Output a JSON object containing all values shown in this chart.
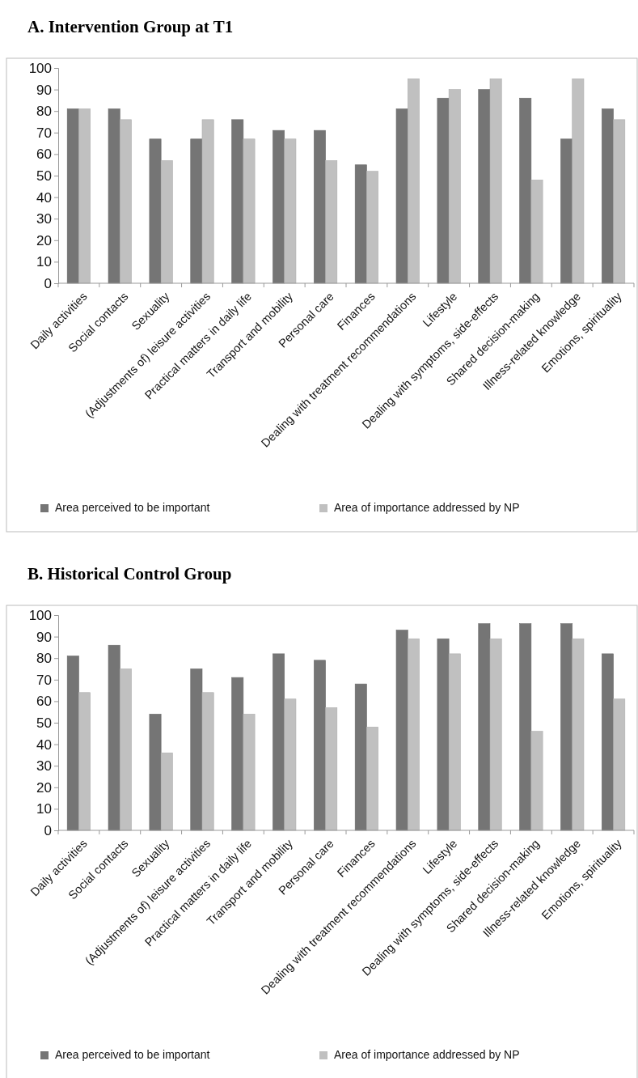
{
  "chart_data": [
    {
      "type": "bar",
      "title": "A.  Intervention Group at T1",
      "categories": [
        "Daily activities",
        "Social contacts",
        "Sexuality",
        "(Adjustments of) leisure activities",
        "Practical matters in daily life",
        "Transport and mobility",
        "Personal care",
        "Finances",
        "Dealing with treatment recommendations",
        "Lifestyle",
        "Dealing with symptoms, side-effects",
        "Shared decision-making",
        "Illness-related knowledge",
        "Emotions, spirituality"
      ],
      "series": [
        {
          "name": "Area perceived to be important",
          "color": "#757575",
          "values": [
            81,
            81,
            67,
            67,
            76,
            71,
            71,
            55,
            81,
            86,
            90,
            86,
            67,
            81
          ]
        },
        {
          "name": "Area of importance addressed by NP",
          "color": "#c0c0c0",
          "values": [
            81,
            76,
            57,
            76,
            67,
            67,
            57,
            52,
            95,
            90,
            95,
            48,
            95,
            76
          ]
        }
      ],
      "ylim": [
        0,
        100
      ],
      "yticks": [
        0,
        10,
        20,
        30,
        40,
        50,
        60,
        70,
        80,
        90,
        100
      ],
      "legend": "bottom"
    },
    {
      "type": "bar",
      "title": "B.  Historical Control Group",
      "categories": [
        "Daily activities",
        "Social contacts",
        "Sexuality",
        "(Adjustments of) leisure activities",
        "Practical matters in daily life",
        "Transport and mobility",
        "Personal care",
        "Finances",
        "Dealing with treatment recommendations",
        "Lifestyle",
        "Dealing with symptoms, side-effects",
        "Shared decision-making",
        "Illness-related knowledge",
        "Emotions, spirituality"
      ],
      "series": [
        {
          "name": "Area perceived to be important",
          "color": "#757575",
          "values": [
            81,
            86,
            54,
            75,
            71,
            82,
            79,
            68,
            93,
            89,
            96,
            96,
            96,
            82
          ]
        },
        {
          "name": "Area of importance addressed by NP",
          "color": "#c0c0c0",
          "values": [
            64,
            75,
            36,
            64,
            54,
            61,
            57,
            48,
            89,
            82,
            89,
            46,
            89,
            61
          ]
        }
      ],
      "ylim": [
        0,
        100
      ],
      "yticks": [
        0,
        10,
        20,
        30,
        40,
        50,
        60,
        70,
        80,
        90,
        100
      ],
      "legend": "bottom"
    }
  ]
}
